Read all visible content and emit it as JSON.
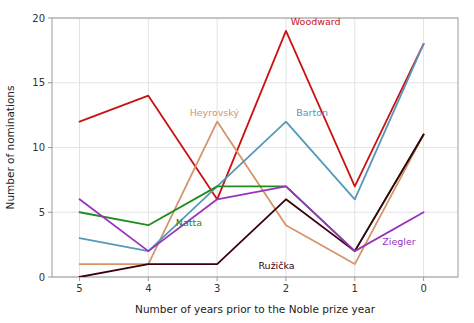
{
  "chart_data": {
    "type": "line",
    "x": [
      5,
      4,
      3,
      2,
      1,
      0
    ],
    "series": [
      {
        "color": "#cc1111",
        "values": [
          12,
          14,
          6,
          19,
          7,
          18
        ]
      },
      {
        "color": "#d4956a",
        "values": [
          1,
          1,
          12,
          4,
          1,
          11
        ]
      },
      {
        "color": "#5599bb",
        "values": [
          3,
          2,
          7,
          12,
          6,
          18
        ]
      },
      {
        "color": "#228B22",
        "values": [
          5,
          4,
          7,
          7,
          2,
          11
        ]
      },
      {
        "color": "#3B0010",
        "values": [
          0,
          1,
          1,
          6,
          2,
          11
        ]
      },
      {
        "color": "#9933bb",
        "values": [
          6,
          2,
          6,
          7,
          2,
          5
        ]
      }
    ],
    "annotations": [
      {
        "text": "Woodward",
        "x": 1.93,
        "y": 19.3,
        "color": "#cc1111"
      },
      {
        "text": "Heyrovský",
        "x": 3.4,
        "y": 12.3,
        "color": "#d4956a"
      },
      {
        "text": "Barton",
        "x": 1.85,
        "y": 12.3,
        "color": "#5599bb"
      },
      {
        "text": "Natta",
        "x": 3.6,
        "y": 3.8,
        "color": "#228B22"
      },
      {
        "text": "Ružička",
        "x": 2.4,
        "y": 0.5,
        "color": "#3B0010"
      },
      {
        "text": "Ziegler",
        "x": 0.6,
        "y": 2.3,
        "color": "#9933bb"
      }
    ],
    "xlabel": "Number of years prior to the Noble prize year",
    "ylabel": "Number of nominations",
    "xlim": [
      5.4,
      -0.5
    ],
    "ylim": [
      0,
      20
    ],
    "xticks": [
      5,
      4,
      3,
      2,
      1,
      0
    ],
    "yticks": [
      0,
      5,
      10,
      15,
      20
    ],
    "grid": true
  }
}
